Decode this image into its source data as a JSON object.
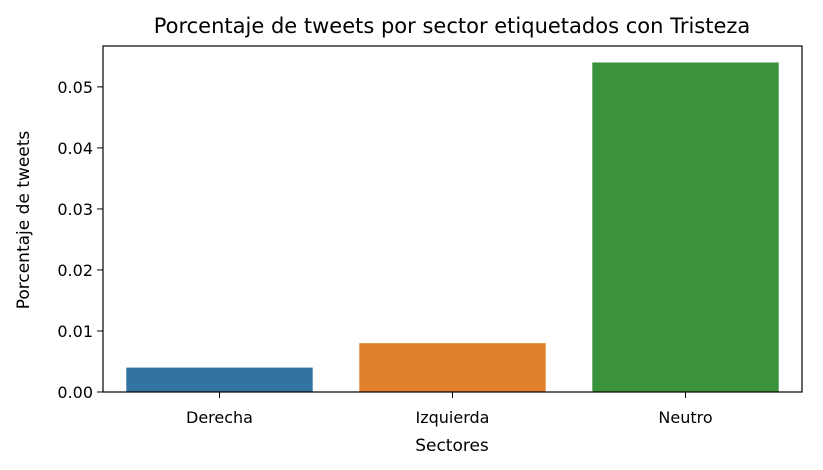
{
  "chart_data": {
    "type": "bar",
    "title": "Porcentaje de tweets por sector etiquetados con Tristeza",
    "xlabel": "Sectores",
    "ylabel": "Porcentaje de tweets",
    "categories": [
      "Derecha",
      "Izquierda",
      "Neutro"
    ],
    "values": [
      0.004,
      0.008,
      0.054
    ],
    "colors": [
      "#3274a1",
      "#e1812c",
      "#3a923a"
    ],
    "ylim": [
      0,
      0.0567
    ],
    "yticks": [
      0.0,
      0.01,
      0.02,
      0.03,
      0.04,
      0.05
    ],
    "ytick_labels": [
      "0.00",
      "0.01",
      "0.02",
      "0.03",
      "0.04",
      "0.05"
    ],
    "grid": false,
    "legend": "none"
  }
}
